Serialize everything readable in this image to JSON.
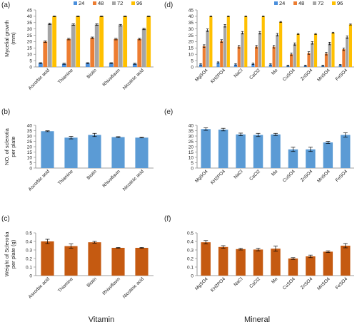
{
  "colors": {
    "s24": "#4a8fdc",
    "s48": "#ed7d31",
    "s72": "#a5a5a5",
    "s96": "#ffc000",
    "blue": "#5b9bd5",
    "orange": "#c55a11",
    "axis": "#7f7f7f",
    "error": "#000000"
  },
  "footer": {
    "left": "Vitamin",
    "right": "Mineral"
  },
  "chart_data": [
    {
      "panel": "(a)",
      "type": "bar",
      "ylabel": [
        "Mycelial growth",
        "(mm)"
      ],
      "ylim": [
        0,
        45
      ],
      "yticks": [
        "0",
        "5",
        "10",
        "15",
        "20",
        "25",
        "30",
        "35",
        "40",
        "45"
      ],
      "categories": [
        "Ascorbic acid",
        "Thiamine",
        "Biotin",
        "Rhivoflavin",
        "Nicotinic acid"
      ],
      "legend": [
        "24",
        "48",
        "72",
        "96"
      ],
      "legend_position": "top-right",
      "series": [
        {
          "name": "24",
          "values": [
            3,
            2.5,
            3,
            3,
            2.5
          ],
          "errors": [
            0.4,
            0.4,
            0.4,
            0.4,
            0.4
          ]
        },
        {
          "name": "48",
          "values": [
            20,
            22,
            23,
            22,
            22
          ],
          "errors": [
            0.6,
            0.6,
            0.6,
            0.6,
            0.6
          ]
        },
        {
          "name": "72",
          "values": [
            34,
            33.5,
            33.5,
            33,
            30
          ],
          "errors": [
            0.6,
            0.6,
            0.6,
            0.6,
            0.6
          ]
        },
        {
          "name": "96",
          "values": [
            40,
            40,
            40,
            40,
            40
          ],
          "errors": [
            0.3,
            0.3,
            0.3,
            0.3,
            0.3
          ]
        }
      ]
    },
    {
      "panel": "(d)",
      "type": "bar",
      "ylabel": [],
      "ylim": [
        0,
        45
      ],
      "yticks": [
        "0",
        "5",
        "10",
        "15",
        "20",
        "25",
        "30",
        "35",
        "40",
        "45"
      ],
      "categories": [
        "MgSO4",
        "KH2PO4",
        "NaCl",
        "CaCl2",
        "Mo",
        "CuSO4",
        "ZnSO4",
        "MnSO4",
        "FeSO4"
      ],
      "legend": [
        "24",
        "48",
        "72",
        "96"
      ],
      "legend_position": "top-right",
      "series": [
        {
          "name": "24",
          "values": [
            2,
            3.5,
            2,
            2.5,
            2,
            1,
            1,
            1,
            1.5
          ],
          "errors": [
            0.5,
            0.5,
            0.5,
            0.5,
            0.5,
            0.4,
            0.4,
            0.4,
            0.4
          ]
        },
        {
          "name": "48",
          "values": [
            16.5,
            20.5,
            16,
            16,
            16,
            10,
            11,
            10.5,
            14
          ],
          "errors": [
            1,
            1,
            1,
            1,
            1,
            1,
            1,
            1,
            1
          ]
        },
        {
          "name": "72",
          "values": [
            29,
            32.5,
            27,
            27,
            25.5,
            18,
            19,
            18.5,
            23.5
          ],
          "errors": [
            1,
            1,
            1,
            1,
            1,
            1,
            1,
            1,
            1
          ]
        },
        {
          "name": "96",
          "values": [
            40,
            40,
            40,
            40,
            35.5,
            26,
            26,
            27,
            33.5
          ],
          "errors": [
            0.3,
            0.3,
            0.3,
            0.3,
            0.4,
            0.4,
            0.4,
            0.4,
            0.4
          ]
        }
      ]
    },
    {
      "panel": "(b)",
      "type": "bar",
      "ylabel": [
        "NO. of sclerotia",
        "per plate"
      ],
      "ylim": [
        0,
        40
      ],
      "yticks": [
        "0",
        "5",
        "10",
        "15",
        "20",
        "25",
        "30",
        "35",
        "40"
      ],
      "categories": [
        "Ascorbic acid",
        "Thiamine",
        "Biotin",
        "Rhivoflavin",
        "Nicotinic acid"
      ],
      "series": [
        {
          "name": "",
          "values": [
            34.5,
            28.5,
            31,
            29,
            28.5
          ],
          "errors": [
            0.4,
            1.2,
            1.5,
            0.4,
            0.3
          ],
          "color": "blue"
        }
      ]
    },
    {
      "panel": "(e)",
      "type": "bar",
      "ylabel": [],
      "ylim": [
        0,
        40
      ],
      "yticks": [
        "0",
        "5",
        "10",
        "15",
        "20",
        "25",
        "30",
        "35",
        "40"
      ],
      "categories": [
        "MgSO4",
        "KH2PO4",
        "NaCl",
        "CaCl2",
        "Mo",
        "CuSO4",
        "ZnSO4",
        "MnSO4",
        "FeSO4"
      ],
      "series": [
        {
          "name": "",
          "values": [
            36.5,
            36,
            31.5,
            31,
            31.5,
            17.5,
            17.5,
            24,
            31
          ],
          "errors": [
            1.2,
            1.2,
            1.2,
            1.5,
            1,
            2,
            2,
            1,
            2
          ],
          "color": "blue"
        }
      ]
    },
    {
      "panel": "(c)",
      "type": "bar",
      "ylabel": [
        "Weight of Sclerotia",
        "per plate (g)"
      ],
      "ylim": [
        0,
        0.5
      ],
      "yticks": [
        "0",
        "0.1",
        "0.2",
        "0.3",
        "0.4",
        "0.5"
      ],
      "categories": [
        "Ascorbic acid",
        "Thiamine",
        "Biotin",
        "Rhivoflavin",
        "Nicotinic acid"
      ],
      "series": [
        {
          "name": "",
          "values": [
            0.4,
            0.345,
            0.39,
            0.325,
            0.325
          ],
          "errors": [
            0.025,
            0.025,
            0.01,
            0.004,
            0.004
          ],
          "color": "orange"
        }
      ]
    },
    {
      "panel": "(f)",
      "type": "bar",
      "ylabel": [],
      "ylim": [
        0,
        0.5
      ],
      "yticks": [
        "0",
        "0.1",
        "0.2",
        "0.3",
        "0.4",
        "0.5"
      ],
      "categories": [
        "MgSO4",
        "KH2PO4",
        "NaCl",
        "CaCl2",
        "Mo",
        "CuSO4",
        "ZnSO4",
        "MnSO4",
        "FeSO4"
      ],
      "series": [
        {
          "name": "",
          "values": [
            0.39,
            0.335,
            0.31,
            0.305,
            0.315,
            0.2,
            0.225,
            0.28,
            0.35
          ],
          "errors": [
            0.02,
            0.015,
            0.01,
            0.015,
            0.03,
            0.01,
            0.015,
            0.01,
            0.025
          ],
          "color": "orange"
        }
      ]
    }
  ]
}
